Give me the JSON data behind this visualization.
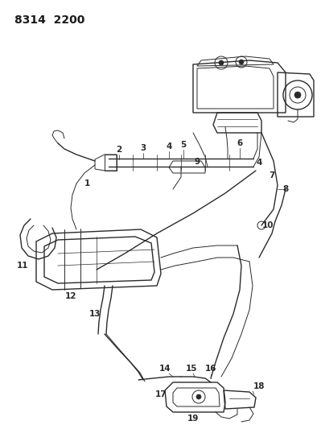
{
  "title": "8314  2200",
  "bg_color": "#ffffff",
  "line_color": "#2a2a2a",
  "label_color": "#1a1a1a",
  "title_fontsize": 10,
  "label_fontsize": 7.5,
  "figsize": [
    3.99,
    5.33
  ],
  "dpi": 100
}
